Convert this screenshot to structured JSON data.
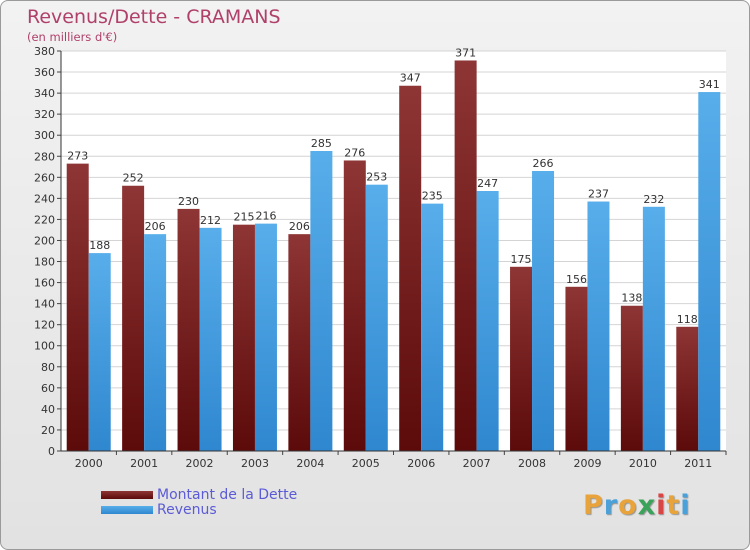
{
  "title": "Revenus/Dette - CRAMANS",
  "subtitle": "(en milliers d'€)",
  "logo": {
    "text": "Proxiti",
    "letters": [
      "P",
      "r",
      "o",
      "x",
      "i",
      "t",
      "i"
    ],
    "colors": [
      "#e8a33b",
      "#4aa0d8",
      "#e8a33b",
      "#3aa35a",
      "#d94545",
      "#e8a33b",
      "#4aa0d8"
    ]
  },
  "chart_data": {
    "type": "bar",
    "title": "Revenus/Dette - CRAMANS",
    "ylabel": "(en milliers d'€)",
    "categories": [
      "2000",
      "2001",
      "2002",
      "2003",
      "2004",
      "2005",
      "2006",
      "2007",
      "2008",
      "2009",
      "2010",
      "2011"
    ],
    "series": [
      {
        "name": "Montant de la Dette",
        "color": "#7a1c1c",
        "values": [
          273,
          252,
          230,
          215,
          206,
          276,
          347,
          371,
          175,
          156,
          138,
          118
        ]
      },
      {
        "name": "Revenus",
        "color": "#4ba3e3",
        "values": [
          188,
          206,
          212,
          216,
          285,
          253,
          235,
          247,
          266,
          237,
          232,
          341
        ]
      }
    ],
    "ylim": [
      0,
      380
    ],
    "yticks": [
      0,
      20,
      40,
      60,
      80,
      100,
      120,
      140,
      160,
      180,
      200,
      220,
      240,
      260,
      280,
      300,
      320,
      340,
      360,
      380
    ],
    "grid": true,
    "legend_position": "bottom-left"
  }
}
